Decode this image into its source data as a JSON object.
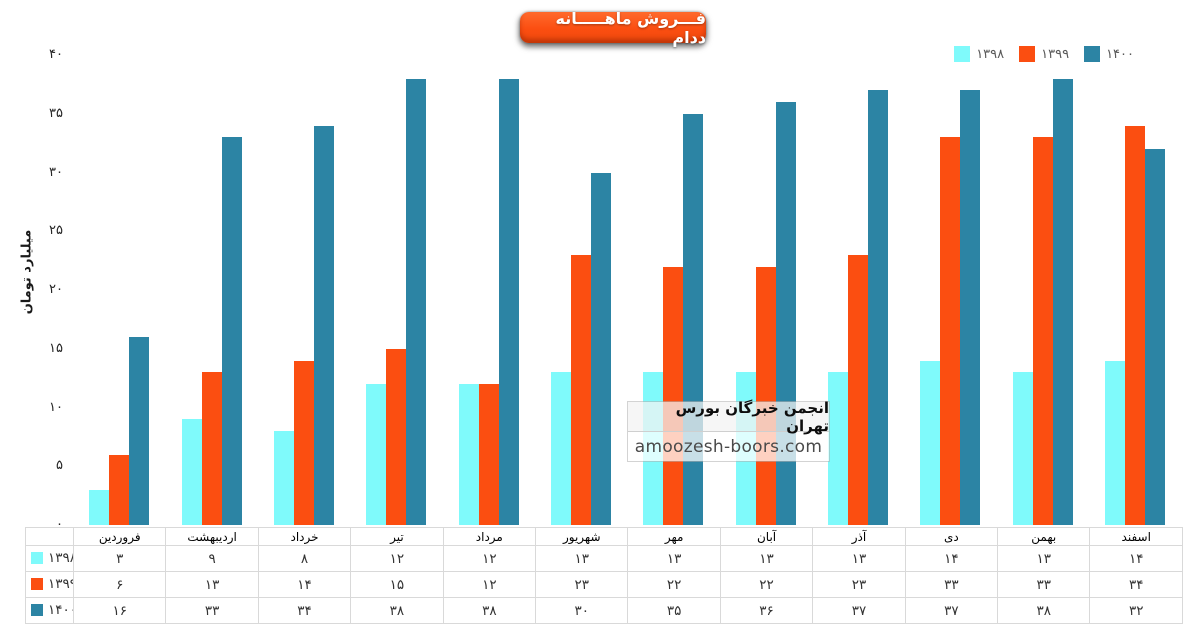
{
  "title_box": {
    "text": "فـــروش ماهـــــانه ددام",
    "bg_color": "#FB4E11",
    "text_color": "#FFFFFF"
  },
  "legend": {
    "position": "top-right",
    "items": [
      {
        "label": "۱۳۹۸",
        "color": "#7FFAFB"
      },
      {
        "label": "۱۳۹۹",
        "color": "#FB4E11"
      },
      {
        "label": "۱۴۰۰",
        "color": "#2C84A4"
      }
    ]
  },
  "y_axis": {
    "title": "میلیارد تومان",
    "ticks": [
      {
        "label": "۰",
        "value": 0
      },
      {
        "label": "۵",
        "value": 5
      },
      {
        "label": "۱۰",
        "value": 10
      },
      {
        "label": "۱۵",
        "value": 15
      },
      {
        "label": "۲۰",
        "value": 20
      },
      {
        "label": "۲۵",
        "value": 25
      },
      {
        "label": "۳۰",
        "value": 30
      },
      {
        "label": "۳۵",
        "value": 35
      },
      {
        "label": "۴۰",
        "value": 40
      }
    ]
  },
  "watermark": {
    "line1": "انجمن خبرگان بورس تهران",
    "line2": "amoozesh-boors.com"
  },
  "chart_data": {
    "type": "bar",
    "title": "فروش ماهانه ددام",
    "xlabel": "",
    "ylabel": "میلیارد تومان",
    "ylim": [
      0,
      40
    ],
    "grid": false,
    "legend_position": "top-right",
    "categories": [
      "فروردین",
      "اردیبهشت",
      "خرداد",
      "تیر",
      "مرداد",
      "شهریور",
      "مهر",
      "آبان",
      "آذر",
      "دی",
      "بهمن",
      "اسفند"
    ],
    "series": [
      {
        "name": "۱۳۹۸",
        "color": "#7FFAFB",
        "values": [
          3,
          9,
          8,
          12,
          12,
          13,
          13,
          13,
          13,
          14,
          13,
          14
        ],
        "labels": [
          "۳",
          "۹",
          "۸",
          "۱۲",
          "۱۲",
          "۱۳",
          "۱۳",
          "۱۳",
          "۱۳",
          "۱۴",
          "۱۳",
          "۱۴"
        ]
      },
      {
        "name": "۱۳۹۹",
        "color": "#FB4E11",
        "values": [
          6,
          13,
          14,
          15,
          12,
          23,
          22,
          22,
          23,
          33,
          33,
          34
        ],
        "labels": [
          "۶",
          "۱۳",
          "۱۴",
          "۱۵",
          "۱۲",
          "۲۳",
          "۲۲",
          "۲۲",
          "۲۳",
          "۳۳",
          "۳۳",
          "۳۴"
        ]
      },
      {
        "name": "۱۴۰۰",
        "color": "#2C84A4",
        "values": [
          16,
          33,
          34,
          38,
          38,
          30,
          35,
          36,
          37,
          37,
          38,
          32
        ],
        "labels": [
          "۱۶",
          "۳۳",
          "۳۴",
          "۳۸",
          "۳۸",
          "۳۰",
          "۳۵",
          "۳۶",
          "۳۷",
          "۳۷",
          "۳۸",
          "۳۲"
        ]
      }
    ]
  }
}
